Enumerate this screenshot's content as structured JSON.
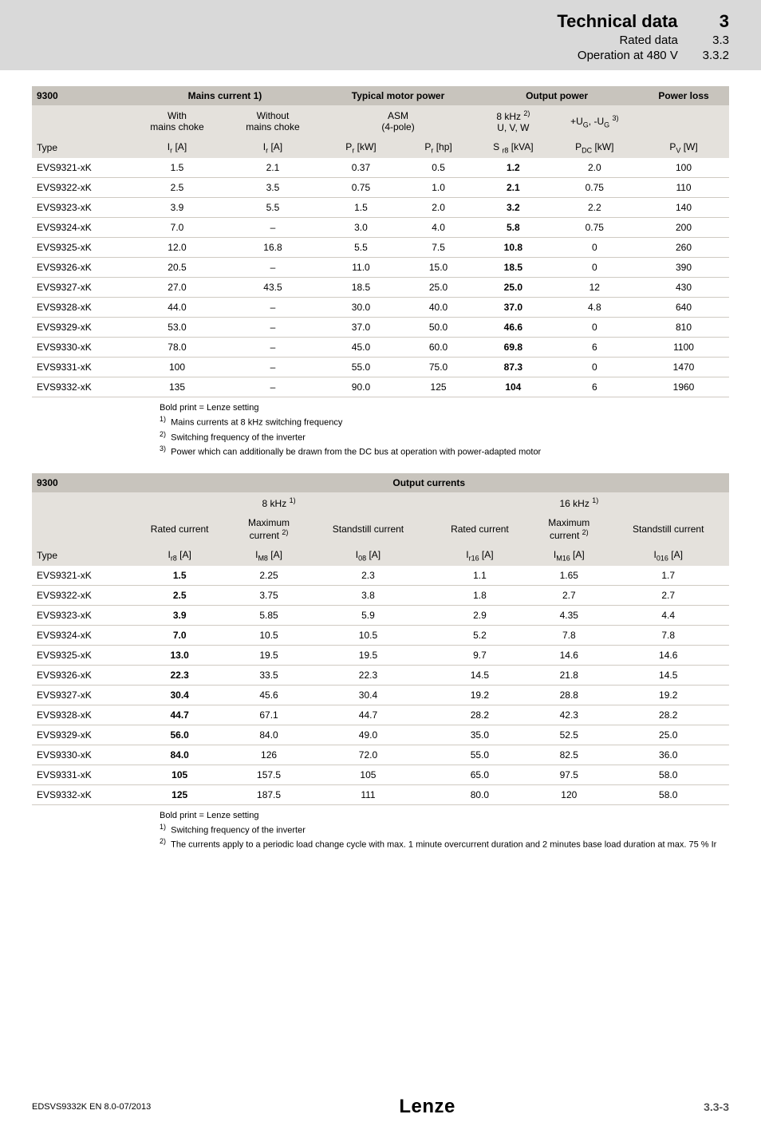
{
  "header": {
    "title": "Technical data",
    "title_num": "3",
    "line2": "Rated data",
    "line2_num": "3.3",
    "line3": "Operation at 480 V",
    "line3_num": "3.3.2",
    "band_bg": "#d9d9d9"
  },
  "table1": {
    "header_bg": "#c8c4bd",
    "sub_bg": "#e4e1dc",
    "row_border": "#cfcac2",
    "columns_top": [
      "9300",
      "Mains current 1)",
      "Typical motor power",
      "Output power",
      "Power loss"
    ],
    "sub1": [
      "",
      "With mains choke",
      "Without mains choke",
      "ASM (4-pole)",
      "",
      "8 kHz 2) U, V, W",
      "+UG, -UG 3)",
      ""
    ],
    "type_label": "Type",
    "unit_row": [
      "Ir [A]",
      "Ir [A]",
      "Pr [kW]",
      "Pr [hp]",
      "S r8 [kVA]",
      "PDC [kW]",
      "PV [W]"
    ],
    "rows": [
      {
        "type": "EVS9321-xK",
        "c": [
          "1.5",
          "2.1",
          "0.37",
          "0.5",
          "1.2",
          "2.0",
          "100"
        ]
      },
      {
        "type": "EVS9322-xK",
        "c": [
          "2.5",
          "3.5",
          "0.75",
          "1.0",
          "2.1",
          "0.75",
          "110"
        ]
      },
      {
        "type": "EVS9323-xK",
        "c": [
          "3.9",
          "5.5",
          "1.5",
          "2.0",
          "3.2",
          "2.2",
          "140"
        ]
      },
      {
        "type": "EVS9324-xK",
        "c": [
          "7.0",
          "–",
          "3.0",
          "4.0",
          "5.8",
          "0.75",
          "200"
        ]
      },
      {
        "type": "EVS9325-xK",
        "c": [
          "12.0",
          "16.8",
          "5.5",
          "7.5",
          "10.8",
          "0",
          "260"
        ]
      },
      {
        "type": "EVS9326-xK",
        "c": [
          "20.5",
          "–",
          "11.0",
          "15.0",
          "18.5",
          "0",
          "390"
        ]
      },
      {
        "type": "EVS9327-xK",
        "c": [
          "27.0",
          "43.5",
          "18.5",
          "25.0",
          "25.0",
          "12",
          "430"
        ]
      },
      {
        "type": "EVS9328-xK",
        "c": [
          "44.0",
          "–",
          "30.0",
          "40.0",
          "37.0",
          "4.8",
          "640"
        ]
      },
      {
        "type": "EVS9329-xK",
        "c": [
          "53.0",
          "–",
          "37.0",
          "50.0",
          "46.6",
          "0",
          "810"
        ]
      },
      {
        "type": "EVS9330-xK",
        "c": [
          "78.0",
          "–",
          "45.0",
          "60.0",
          "69.8",
          "6",
          "1100"
        ]
      },
      {
        "type": "EVS9331-xK",
        "c": [
          "100",
          "–",
          "55.0",
          "75.0",
          "87.3",
          "0",
          "1470"
        ]
      },
      {
        "type": "EVS9332-xK",
        "c": [
          "135",
          "–",
          "90.0",
          "125",
          "104",
          "6",
          "1960"
        ]
      }
    ],
    "bold_col_index": 4,
    "notes_lead": "Bold print = Lenze setting",
    "notes": [
      "Mains currents at 8 kHz switching frequency",
      "Switching frequency of the inverter",
      "Power which can additionally be drawn from the DC bus at operation with power-adapted motor"
    ]
  },
  "table2": {
    "top": [
      "9300",
      "Output currents"
    ],
    "freq_labels": [
      "8 kHz 1)",
      "16 kHz 1)"
    ],
    "col_labels": [
      "Rated current",
      "Maximum current 2)",
      "Standstill current",
      "Rated current",
      "Maximum current 2)",
      "Standstill current"
    ],
    "type_label": "Type",
    "unit_row": [
      "Ir8 [A]",
      "IM8 [A]",
      "I08 [A]",
      "Ir16 [A]",
      "IM16 [A]",
      "I016 [A]"
    ],
    "rows": [
      {
        "type": "EVS9321-xK",
        "c": [
          "1.5",
          "2.25",
          "2.3",
          "1.1",
          "1.65",
          "1.7"
        ]
      },
      {
        "type": "EVS9322-xK",
        "c": [
          "2.5",
          "3.75",
          "3.8",
          "1.8",
          "2.7",
          "2.7"
        ]
      },
      {
        "type": "EVS9323-xK",
        "c": [
          "3.9",
          "5.85",
          "5.9",
          "2.9",
          "4.35",
          "4.4"
        ]
      },
      {
        "type": "EVS9324-xK",
        "c": [
          "7.0",
          "10.5",
          "10.5",
          "5.2",
          "7.8",
          "7.8"
        ]
      },
      {
        "type": "EVS9325-xK",
        "c": [
          "13.0",
          "19.5",
          "19.5",
          "9.7",
          "14.6",
          "14.6"
        ]
      },
      {
        "type": "EVS9326-xK",
        "c": [
          "22.3",
          "33.5",
          "22.3",
          "14.5",
          "21.8",
          "14.5"
        ]
      },
      {
        "type": "EVS9327-xK",
        "c": [
          "30.4",
          "45.6",
          "30.4",
          "19.2",
          "28.8",
          "19.2"
        ]
      },
      {
        "type": "EVS9328-xK",
        "c": [
          "44.7",
          "67.1",
          "44.7",
          "28.2",
          "42.3",
          "28.2"
        ]
      },
      {
        "type": "EVS9329-xK",
        "c": [
          "56.0",
          "84.0",
          "49.0",
          "35.0",
          "52.5",
          "25.0"
        ]
      },
      {
        "type": "EVS9330-xK",
        "c": [
          "84.0",
          "126",
          "72.0",
          "55.0",
          "82.5",
          "36.0"
        ]
      },
      {
        "type": "EVS9331-xK",
        "c": [
          "105",
          "157.5",
          "105",
          "65.0",
          "97.5",
          "58.0"
        ]
      },
      {
        "type": "EVS9332-xK",
        "c": [
          "125",
          "187.5",
          "111",
          "80.0",
          "120",
          "58.0"
        ]
      }
    ],
    "bold_col_index": 0,
    "notes_lead": "Bold print = Lenze setting",
    "notes": [
      "Switching frequency of the inverter",
      "The currents apply to a periodic load change cycle with max. 1 minute overcurrent duration and 2 minutes base load duration at max. 75 % Ir"
    ]
  },
  "footer": {
    "left": "EDSVS9332K EN   8.0-07/2013",
    "logo": "Lenze",
    "page": "3.3-3"
  }
}
